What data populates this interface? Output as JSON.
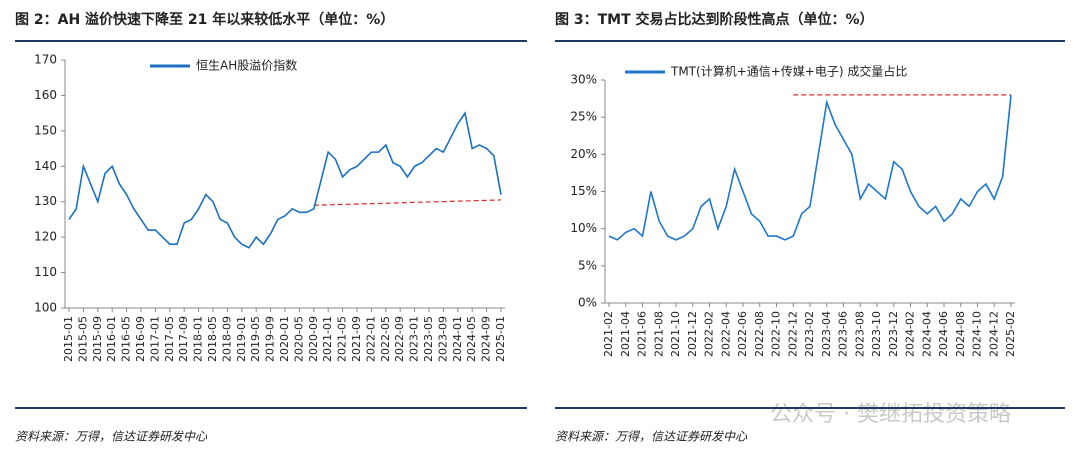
{
  "chart_data": [
    {
      "type": "line",
      "title": "图 2：AH 溢价快速下降至 21 年以来较低水平（单位：%）",
      "categories": [
        "2015-01",
        null,
        "2015-05",
        null,
        "2015-09",
        null,
        "2016-01",
        null,
        "2016-05",
        null,
        "2016-09",
        null,
        "2017-01",
        null,
        "2017-05",
        null,
        "2017-09",
        null,
        "2018-01",
        null,
        "2018-05",
        null,
        "2018-09",
        null,
        "2019-01",
        null,
        "2019-05",
        null,
        "2019-09",
        null,
        "2020-01",
        null,
        "2020-05",
        null,
        "2020-09",
        null,
        "2021-01",
        null,
        "2021-05",
        null,
        "2021-09",
        null,
        "2022-01",
        null,
        "2022-05",
        null,
        "2022-09",
        null,
        "2023-01",
        null,
        "2023-05",
        null,
        "2023-09",
        null,
        "2024-01",
        null,
        "2024-05",
        null,
        "2024-09",
        null,
        "2025-01"
      ],
      "series": [
        {
          "name": "恒生AH股溢价指数",
          "color": "#1a6fc0",
          "values": [
            125,
            128,
            140,
            135,
            130,
            138,
            140,
            135,
            132,
            128,
            125,
            122,
            122,
            120,
            118,
            118,
            124,
            125,
            128,
            132,
            130,
            125,
            124,
            120,
            118,
            117,
            120,
            118,
            121,
            125,
            126,
            128,
            127,
            127,
            128,
            136,
            144,
            142,
            137,
            139,
            140,
            142,
            144,
            144,
            146,
            141,
            140,
            137,
            140,
            141,
            143,
            145,
            144,
            148,
            152,
            155,
            145,
            146,
            145,
            143,
            132
          ]
        }
      ],
      "ylim": [
        100,
        170
      ],
      "yticks": [
        100,
        110,
        120,
        130,
        140,
        150,
        160,
        170
      ],
      "reference_line": {
        "from": "2020-09",
        "to": "2025-01",
        "values": [
          129,
          130.5
        ],
        "color": "#d03030"
      },
      "legend": "top",
      "source": "资料来源：万得，信达证券研发中心"
    },
    {
      "type": "line",
      "title": "图 3：TMT 交易占比达到阶段性高点（单位：%）",
      "categories": [
        "2021-02",
        null,
        "2021-04",
        null,
        "2021-06",
        null,
        "2021-08",
        null,
        "2021-10",
        null,
        "2021-12",
        null,
        "2022-02",
        null,
        "2022-04",
        null,
        "2022-06",
        null,
        "2022-08",
        null,
        "2022-10",
        null,
        "2022-12",
        null,
        "2023-02",
        null,
        "2023-04",
        null,
        "2023-06",
        null,
        "2023-08",
        null,
        "2023-10",
        null,
        "2023-12",
        null,
        "2024-02",
        null,
        "2024-04",
        null,
        "2024-06",
        null,
        "2024-08",
        null,
        "2024-10",
        null,
        "2024-12",
        null,
        "2025-02"
      ],
      "series": [
        {
          "name": "TMT(计算机+通信+传媒+电子) 成交量占比",
          "color": "#1f77c8",
          "values": [
            9,
            8.5,
            9.5,
            10,
            9,
            15,
            11,
            9,
            8.5,
            9,
            10,
            13,
            14,
            10,
            13,
            18,
            15,
            12,
            11,
            9,
            9,
            8.5,
            9,
            12,
            13,
            20,
            27,
            24,
            22,
            20,
            14,
            16,
            15,
            14,
            19,
            18,
            15,
            13,
            12,
            13,
            11,
            12,
            14,
            13,
            15,
            16,
            14,
            17,
            28
          ]
        }
      ],
      "ylim": [
        0,
        30
      ],
      "yticks": [
        {
          "value": 0,
          "label": "0%"
        },
        {
          "value": 5,
          "label": "5%"
        },
        {
          "value": 10,
          "label": "10%"
        },
        {
          "value": 15,
          "label": "15%"
        },
        {
          "value": 20,
          "label": "20%"
        },
        {
          "value": 25,
          "label": "25%"
        },
        {
          "value": 30,
          "label": "30%"
        }
      ],
      "reference_line": {
        "from": "2022-12",
        "to": "2025-02",
        "values": [
          28,
          28
        ],
        "color": "#d03030"
      },
      "legend": "top",
      "source": "资料来源：万得，信达证券研发中心"
    }
  ],
  "watermark": "公众号 · 樊继拓投资策略"
}
